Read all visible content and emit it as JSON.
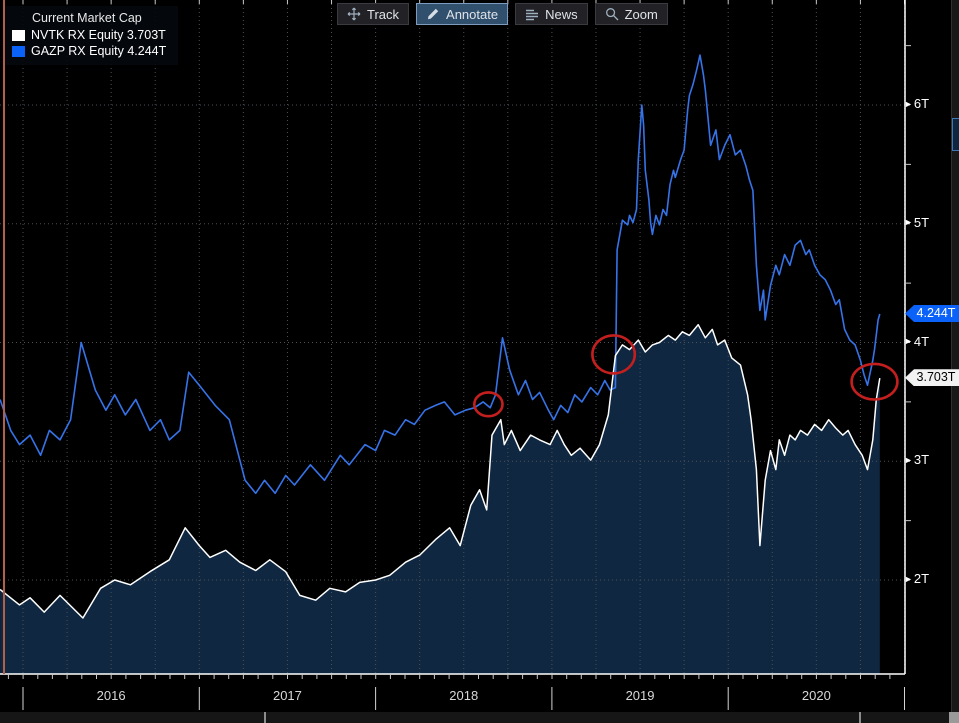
{
  "toolbar": {
    "buttons": [
      {
        "label": "Track",
        "icon": "track-crosshair-icon",
        "active": false
      },
      {
        "label": "Annotate",
        "icon": "pencil-icon",
        "active": true
      },
      {
        "label": "News",
        "icon": "news-lines-icon",
        "active": false
      },
      {
        "label": "Zoom",
        "icon": "magnifier-icon",
        "active": false
      }
    ]
  },
  "legend": {
    "title": "Current Market Cap",
    "items": [
      {
        "label": "NVTK RX Equity 3.703T",
        "color": "#ffffff"
      },
      {
        "label": "GAZP RX Equity 4.244T",
        "color": "#0b62f8"
      }
    ]
  },
  "price_labels": [
    {
      "text": "4.244T",
      "value": 4.244,
      "bg": "#0b62f8",
      "fg": "#ffffff"
    },
    {
      "text": "3.703T",
      "value": 3.703,
      "bg": "#f2f2f2",
      "fg": "#000000"
    }
  ],
  "colors": {
    "background": "#000000",
    "grid": "#4a5055",
    "axis": "#ffffff",
    "nvtk_line": "#ffffff",
    "nvtk_fill": "#0f2740",
    "gazp_line": "#3673e8",
    "annotation": "#c41f1f",
    "left_accent": "#b2604c"
  },
  "chart_data": {
    "type": "line",
    "title": "Current Market Cap",
    "y_axis": {
      "side": "right",
      "unit": "T",
      "range": [
        1.2,
        6.9
      ],
      "ticks": [
        {
          "v": 2,
          "label": "2T"
        },
        {
          "v": 3,
          "label": "3T"
        },
        {
          "v": 4,
          "label": "4T"
        },
        {
          "v": 5,
          "label": "5T"
        },
        {
          "v": 6,
          "label": "6T"
        }
      ],
      "minor_tick_values": [
        2.5,
        3.5,
        4.5,
        5.5,
        6.5
      ]
    },
    "x_axis": {
      "years": [
        2016,
        2017,
        2018,
        2019,
        2020
      ],
      "range": [
        2015.87,
        2020.87
      ],
      "gridline_interval_years": 0.25
    },
    "series": [
      {
        "name": "GAZP RX Equity",
        "last_value": "4.244T",
        "color": "#3673e8",
        "style": "line",
        "points": [
          [
            2015.87,
            3.52
          ],
          [
            2015.93,
            3.26
          ],
          [
            2015.98,
            3.14
          ],
          [
            2016.04,
            3.22
          ],
          [
            2016.1,
            3.05
          ],
          [
            2016.15,
            3.26
          ],
          [
            2016.21,
            3.18
          ],
          [
            2016.27,
            3.35
          ],
          [
            2016.33,
            4.0
          ],
          [
            2016.41,
            3.6
          ],
          [
            2016.47,
            3.43
          ],
          [
            2016.52,
            3.56
          ],
          [
            2016.58,
            3.39
          ],
          [
            2016.64,
            3.52
          ],
          [
            2016.72,
            3.26
          ],
          [
            2016.78,
            3.35
          ],
          [
            2016.83,
            3.18
          ],
          [
            2016.89,
            3.26
          ],
          [
            2016.94,
            3.75
          ],
          [
            2017.0,
            3.64
          ],
          [
            2017.09,
            3.47
          ],
          [
            2017.17,
            3.35
          ],
          [
            2017.26,
            2.84
          ],
          [
            2017.32,
            2.73
          ],
          [
            2017.37,
            2.84
          ],
          [
            2017.43,
            2.73
          ],
          [
            2017.49,
            2.88
          ],
          [
            2017.54,
            2.8
          ],
          [
            2017.63,
            2.97
          ],
          [
            2017.71,
            2.84
          ],
          [
            2017.8,
            3.05
          ],
          [
            2017.85,
            2.97
          ],
          [
            2017.94,
            3.14
          ],
          [
            2018.0,
            3.09
          ],
          [
            2018.05,
            3.26
          ],
          [
            2018.11,
            3.22
          ],
          [
            2018.17,
            3.35
          ],
          [
            2018.22,
            3.31
          ],
          [
            2018.28,
            3.43
          ],
          [
            2018.34,
            3.47
          ],
          [
            2018.39,
            3.5
          ],
          [
            2018.45,
            3.39
          ],
          [
            2018.51,
            3.43
          ],
          [
            2018.56,
            3.45
          ],
          [
            2018.61,
            3.5
          ],
          [
            2018.65,
            3.45
          ],
          [
            2018.68,
            3.56
          ],
          [
            2018.72,
            4.04
          ],
          [
            2018.76,
            3.77
          ],
          [
            2018.81,
            3.56
          ],
          [
            2018.85,
            3.68
          ],
          [
            2018.89,
            3.52
          ],
          [
            2018.93,
            3.58
          ],
          [
            2018.98,
            3.43
          ],
          [
            2019.01,
            3.35
          ],
          [
            2019.05,
            3.47
          ],
          [
            2019.09,
            3.41
          ],
          [
            2019.13,
            3.56
          ],
          [
            2019.17,
            3.5
          ],
          [
            2019.22,
            3.62
          ],
          [
            2019.26,
            3.56
          ],
          [
            2019.3,
            3.68
          ],
          [
            2019.33,
            3.6
          ],
          [
            2019.36,
            3.62
          ],
          [
            2019.37,
            4.78
          ],
          [
            2019.4,
            5.03
          ],
          [
            2019.43,
            4.99
          ],
          [
            2019.44,
            5.07
          ],
          [
            2019.46,
            5.01
          ],
          [
            2019.48,
            5.12
          ],
          [
            2019.49,
            5.54
          ],
          [
            2019.51,
            6.0
          ],
          [
            2019.52,
            5.83
          ],
          [
            2019.53,
            5.45
          ],
          [
            2019.55,
            5.2
          ],
          [
            2019.56,
            5.01
          ],
          [
            2019.57,
            4.91
          ],
          [
            2019.59,
            5.07
          ],
          [
            2019.61,
            4.99
          ],
          [
            2019.63,
            5.12
          ],
          [
            2019.65,
            5.07
          ],
          [
            2019.67,
            5.33
          ],
          [
            2019.69,
            5.45
          ],
          [
            2019.7,
            5.39
          ],
          [
            2019.73,
            5.54
          ],
          [
            2019.75,
            5.62
          ],
          [
            2019.77,
            5.96
          ],
          [
            2019.78,
            6.08
          ],
          [
            2019.8,
            6.17
          ],
          [
            2019.82,
            6.29
          ],
          [
            2019.84,
            6.42
          ],
          [
            2019.86,
            6.25
          ],
          [
            2019.87,
            6.13
          ],
          [
            2019.9,
            5.66
          ],
          [
            2019.93,
            5.79
          ],
          [
            2019.95,
            5.54
          ],
          [
            2019.98,
            5.66
          ],
          [
            2020.01,
            5.75
          ],
          [
            2020.04,
            5.58
          ],
          [
            2020.07,
            5.62
          ],
          [
            2020.1,
            5.49
          ],
          [
            2020.12,
            5.37
          ],
          [
            2020.14,
            5.28
          ],
          [
            2020.16,
            4.65
          ],
          [
            2020.18,
            4.27
          ],
          [
            2020.2,
            4.44
          ],
          [
            2020.21,
            4.19
          ],
          [
            2020.24,
            4.48
          ],
          [
            2020.27,
            4.65
          ],
          [
            2020.29,
            4.57
          ],
          [
            2020.32,
            4.74
          ],
          [
            2020.35,
            4.65
          ],
          [
            2020.38,
            4.82
          ],
          [
            2020.41,
            4.86
          ],
          [
            2020.44,
            4.74
          ],
          [
            2020.46,
            4.78
          ],
          [
            2020.49,
            4.65
          ],
          [
            2020.52,
            4.57
          ],
          [
            2020.55,
            4.53
          ],
          [
            2020.58,
            4.44
          ],
          [
            2020.61,
            4.32
          ],
          [
            2020.63,
            4.36
          ],
          [
            2020.66,
            4.11
          ],
          [
            2020.69,
            4.02
          ],
          [
            2020.72,
            3.98
          ],
          [
            2020.75,
            3.85
          ],
          [
            2020.77,
            3.73
          ],
          [
            2020.79,
            3.64
          ],
          [
            2020.82,
            3.85
          ],
          [
            2020.83,
            3.94
          ],
          [
            2020.85,
            4.19
          ],
          [
            2020.86,
            4.24
          ]
        ]
      },
      {
        "name": "NVTK RX Equity",
        "last_value": "3.703T",
        "color": "#ffffff",
        "fill": "#0f2740",
        "style": "area",
        "points": [
          [
            2015.87,
            1.92
          ],
          [
            2015.98,
            1.79
          ],
          [
            2016.04,
            1.85
          ],
          [
            2016.12,
            1.73
          ],
          [
            2016.21,
            1.87
          ],
          [
            2016.34,
            1.68
          ],
          [
            2016.44,
            1.93
          ],
          [
            2016.52,
            2.0
          ],
          [
            2016.61,
            1.96
          ],
          [
            2016.72,
            2.07
          ],
          [
            2016.83,
            2.17
          ],
          [
            2016.92,
            2.44
          ],
          [
            2017.0,
            2.29
          ],
          [
            2017.06,
            2.19
          ],
          [
            2017.15,
            2.25
          ],
          [
            2017.23,
            2.15
          ],
          [
            2017.32,
            2.08
          ],
          [
            2017.4,
            2.17
          ],
          [
            2017.49,
            2.07
          ],
          [
            2017.57,
            1.87
          ],
          [
            2017.66,
            1.83
          ],
          [
            2017.74,
            1.93
          ],
          [
            2017.83,
            1.9
          ],
          [
            2017.91,
            1.98
          ],
          [
            2018.0,
            2.0
          ],
          [
            2018.08,
            2.04
          ],
          [
            2018.17,
            2.15
          ],
          [
            2018.25,
            2.21
          ],
          [
            2018.34,
            2.34
          ],
          [
            2018.42,
            2.44
          ],
          [
            2018.48,
            2.29
          ],
          [
            2018.54,
            2.63
          ],
          [
            2018.59,
            2.76
          ],
          [
            2018.63,
            2.59
          ],
          [
            2018.66,
            3.22
          ],
          [
            2018.71,
            3.35
          ],
          [
            2018.73,
            3.14
          ],
          [
            2018.77,
            3.26
          ],
          [
            2018.82,
            3.09
          ],
          [
            2018.88,
            3.22
          ],
          [
            2018.93,
            3.18
          ],
          [
            2018.99,
            3.14
          ],
          [
            2019.03,
            3.26
          ],
          [
            2019.07,
            3.14
          ],
          [
            2019.11,
            3.05
          ],
          [
            2019.16,
            3.11
          ],
          [
            2019.22,
            3.01
          ],
          [
            2019.27,
            3.14
          ],
          [
            2019.32,
            3.39
          ],
          [
            2019.36,
            3.89
          ],
          [
            2019.4,
            3.98
          ],
          [
            2019.44,
            3.94
          ],
          [
            2019.49,
            4.02
          ],
          [
            2019.53,
            3.92
          ],
          [
            2019.57,
            3.98
          ],
          [
            2019.61,
            4.0
          ],
          [
            2019.66,
            4.06
          ],
          [
            2019.7,
            4.02
          ],
          [
            2019.74,
            4.09
          ],
          [
            2019.78,
            4.06
          ],
          [
            2019.83,
            4.15
          ],
          [
            2019.87,
            4.04
          ],
          [
            2019.91,
            4.11
          ],
          [
            2019.94,
            3.98
          ],
          [
            2019.98,
            4.02
          ],
          [
            2020.02,
            3.87
          ],
          [
            2020.07,
            3.81
          ],
          [
            2020.11,
            3.56
          ],
          [
            2020.13,
            3.35
          ],
          [
            2020.16,
            2.93
          ],
          [
            2020.18,
            2.29
          ],
          [
            2020.21,
            2.84
          ],
          [
            2020.24,
            3.09
          ],
          [
            2020.27,
            2.93
          ],
          [
            2020.29,
            3.18
          ],
          [
            2020.32,
            3.05
          ],
          [
            2020.35,
            3.22
          ],
          [
            2020.38,
            3.18
          ],
          [
            2020.41,
            3.26
          ],
          [
            2020.45,
            3.22
          ],
          [
            2020.49,
            3.31
          ],
          [
            2020.53,
            3.26
          ],
          [
            2020.57,
            3.35
          ],
          [
            2020.61,
            3.28
          ],
          [
            2020.65,
            3.22
          ],
          [
            2020.68,
            3.26
          ],
          [
            2020.72,
            3.14
          ],
          [
            2020.76,
            3.05
          ],
          [
            2020.79,
            2.93
          ],
          [
            2020.82,
            3.18
          ],
          [
            2020.84,
            3.52
          ],
          [
            2020.86,
            3.7
          ]
        ]
      }
    ],
    "annotations": [
      {
        "shape": "ellipse",
        "x": 2018.64,
        "y": 3.48,
        "rx": 0.08,
        "ry": 0.1
      },
      {
        "shape": "ellipse",
        "x": 2019.35,
        "y": 3.9,
        "rx": 0.12,
        "ry": 0.16
      },
      {
        "shape": "ellipse",
        "x": 2020.83,
        "y": 3.67,
        "rx": 0.13,
        "ry": 0.15
      }
    ]
  }
}
